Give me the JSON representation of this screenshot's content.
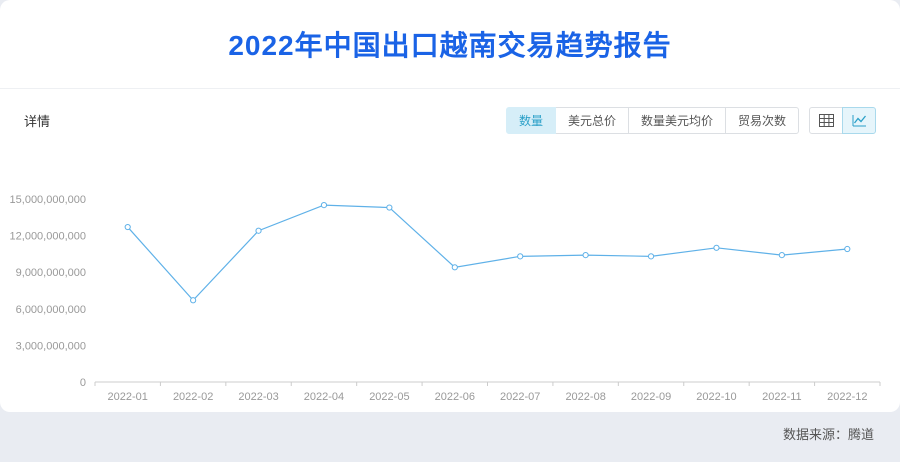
{
  "page": {
    "title": "2022年中国出口越南交易趋势报告",
    "section_label": "详情",
    "source_label": "数据来源：腾道"
  },
  "toolbar": {
    "metric_tabs": [
      {
        "label": "数量",
        "selected": true
      },
      {
        "label": "美元总价",
        "selected": false
      },
      {
        "label": "数量美元均价",
        "selected": false
      },
      {
        "label": "贸易次数",
        "selected": false
      }
    ],
    "view_toggles": [
      {
        "name": "table-view",
        "selected": false
      },
      {
        "name": "chart-view",
        "selected": true
      }
    ]
  },
  "colors": {
    "title_blue": "#1a63e6",
    "line_blue": "#5fb1e8",
    "selected_bg": "#d6eef8",
    "selected_text": "#2ba0c8",
    "axis_gray": "#cccccc",
    "tick_text": "#999999"
  },
  "chart_data": {
    "type": "line",
    "title": "2022年中国出口越南交易趋势报告",
    "categories": [
      "2022-01",
      "2022-02",
      "2022-03",
      "2022-04",
      "2022-05",
      "2022-06",
      "2022-07",
      "2022-08",
      "2022-09",
      "2022-10",
      "2022-11",
      "2022-12"
    ],
    "values": [
      12700000000,
      6700000000,
      12400000000,
      14500000000,
      14300000000,
      9400000000,
      10300000000,
      10400000000,
      10300000000,
      11000000000,
      10400000000,
      10900000000
    ],
    "ylim": [
      0,
      15000000000
    ],
    "yticks": [
      {
        "value": 0,
        "label": "0"
      },
      {
        "value": 3000000000,
        "label": "3,000,000,000"
      },
      {
        "value": 6000000000,
        "label": "6,000,000,000"
      },
      {
        "value": 9000000000,
        "label": "9,000,000,000"
      },
      {
        "value": 12000000000,
        "label": "12,000,000,000"
      },
      {
        "value": 15000000000,
        "label": "15,000,000,000"
      }
    ],
    "xlabel": "",
    "ylabel": "",
    "grid": false,
    "legend": false,
    "line_color": "#5fb1e8",
    "marker": "hollow-circle"
  }
}
